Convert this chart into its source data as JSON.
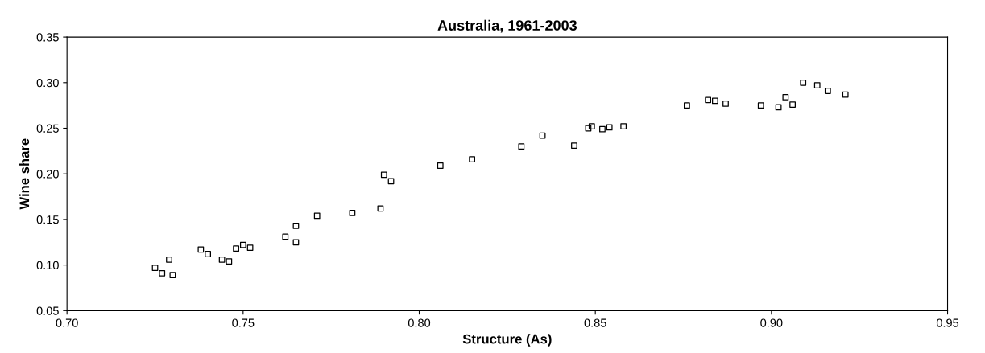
{
  "chart_data": {
    "type": "scatter",
    "title": "Australia, 1961-2003",
    "xlabel": "Structure (As)",
    "ylabel": "Wine share",
    "x": [
      0.725,
      0.727,
      0.729,
      0.73,
      0.738,
      0.74,
      0.744,
      0.746,
      0.748,
      0.75,
      0.752,
      0.762,
      0.765,
      0.765,
      0.771,
      0.781,
      0.789,
      0.79,
      0.792,
      0.806,
      0.815,
      0.829,
      0.835,
      0.844,
      0.848,
      0.849,
      0.852,
      0.854,
      0.858,
      0.876,
      0.882,
      0.884,
      0.887,
      0.897,
      0.902,
      0.904,
      0.906,
      0.909,
      0.913,
      0.916,
      0.921
    ],
    "values": [
      0.097,
      0.091,
      0.106,
      0.089,
      0.117,
      0.112,
      0.106,
      0.104,
      0.118,
      0.122,
      0.119,
      0.131,
      0.143,
      0.125,
      0.154,
      0.157,
      0.162,
      0.199,
      0.192,
      0.209,
      0.216,
      0.23,
      0.242,
      0.231,
      0.25,
      0.252,
      0.249,
      0.251,
      0.252,
      0.275,
      0.281,
      0.28,
      0.277,
      0.275,
      0.273,
      0.284,
      0.276,
      0.3,
      0.297,
      0.291,
      0.287
    ],
    "color": "#000000",
    "marker": "square",
    "grid": false,
    "legend": false,
    "xlim": [
      0.7,
      0.95
    ],
    "xticks": [
      {
        "value": 0.7,
        "label": "0.70"
      },
      {
        "value": 0.75,
        "label": "0.75"
      },
      {
        "value": 0.8,
        "label": "0.80"
      },
      {
        "value": 0.85,
        "label": "0.85"
      },
      {
        "value": 0.9,
        "label": "0.90"
      },
      {
        "value": 0.95,
        "label": "0.95"
      }
    ],
    "ylim": [
      0.05,
      0.35
    ],
    "yticks": [
      {
        "value": 0.05,
        "label": "0.05"
      },
      {
        "value": 0.1,
        "label": "0.10"
      },
      {
        "value": 0.15,
        "label": "0.15"
      },
      {
        "value": 0.2,
        "label": "0.20"
      },
      {
        "value": 0.25,
        "label": "0.25"
      },
      {
        "value": 0.3,
        "label": "0.30"
      },
      {
        "value": 0.35,
        "label": "0.35"
      }
    ]
  }
}
